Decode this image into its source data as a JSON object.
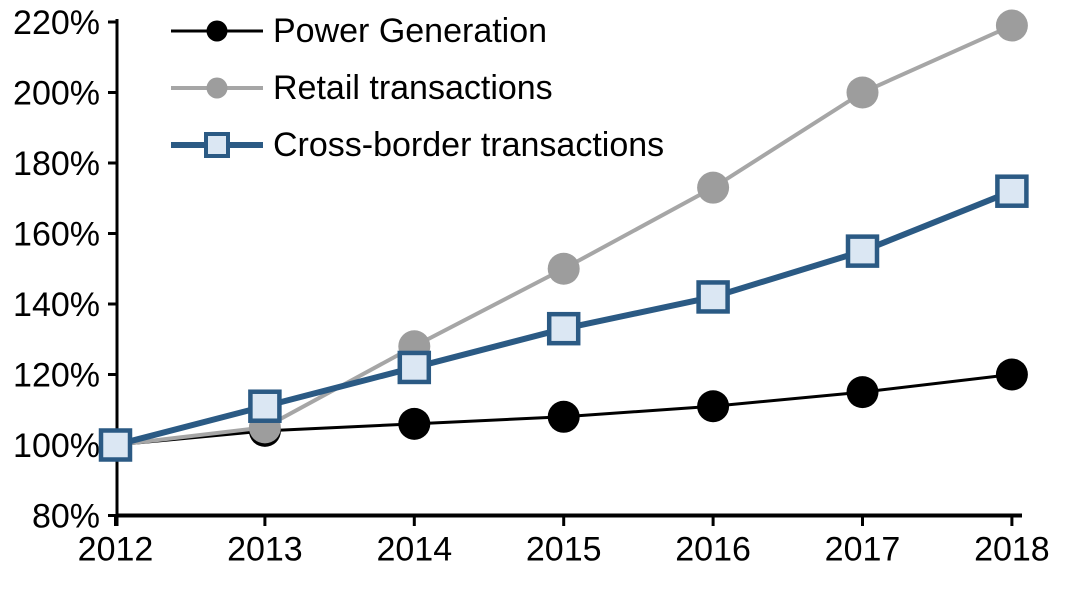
{
  "chart_data": {
    "type": "line",
    "title": "",
    "x_categories": [
      "2012",
      "2013",
      "2014",
      "2015",
      "2016",
      "2017",
      "2018"
    ],
    "y_axis": {
      "min": 80,
      "max": 220,
      "step": 20,
      "format": "percent",
      "tick_labels": [
        "80%",
        "100%",
        "120%",
        "140%",
        "160%",
        "180%",
        "200%",
        "220%"
      ]
    },
    "series": [
      {
        "name": "Power Generation",
        "marker": "circle",
        "color": "#000000",
        "marker_fill": "#000000",
        "line_width": 3,
        "values": [
          100,
          104,
          106,
          108,
          111,
          115,
          120
        ]
      },
      {
        "name": "Retail transactions",
        "marker": "circle",
        "color": "#a6a6a6",
        "marker_fill": "#9d9d9d",
        "line_width": 4,
        "values": [
          100,
          105,
          128,
          150,
          173,
          200,
          219
        ]
      },
      {
        "name": "Cross-border transactions",
        "marker": "square",
        "color": "#2b5a84",
        "marker_fill": "#dbe7f3",
        "line_width": 6,
        "values": [
          100,
          111,
          122,
          133,
          142,
          155,
          172
        ]
      }
    ],
    "legend_position": "top-left",
    "grid": false,
    "axis_color": "#000000"
  }
}
